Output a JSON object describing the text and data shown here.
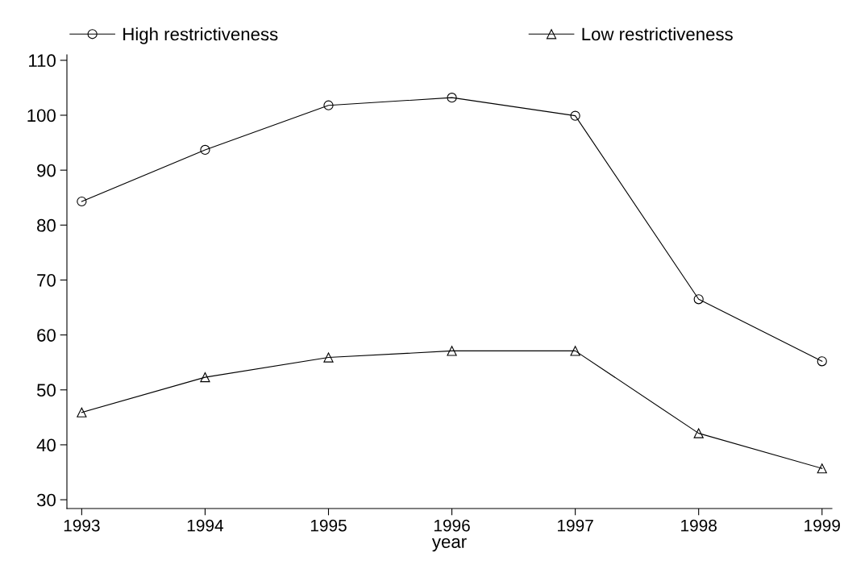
{
  "chart_data": {
    "type": "line",
    "xlabel": "year",
    "x": [
      1993,
      1994,
      1995,
      1996,
      1997,
      1998,
      1999
    ],
    "series": [
      {
        "name": "High restrictiveness",
        "color": "#000000",
        "marker": "circle",
        "values": [
          84.3,
          93.7,
          101.8,
          103.2,
          99.9,
          66.5,
          55.2
        ]
      },
      {
        "name": "Low restrictiveness",
        "color": "#000000",
        "marker": "triangle",
        "values": [
          45.9,
          52.3,
          55.9,
          57.1,
          57.1,
          42.1,
          35.7
        ]
      }
    ],
    "xlim": [
      1992.88,
      1999.08
    ],
    "xticks": [
      1993,
      1994,
      1995,
      1996,
      1997,
      1998,
      1999
    ],
    "ylim": [
      28.4,
      111
    ],
    "yticks": [
      30,
      40,
      50,
      60,
      70,
      80,
      90,
      100,
      110
    ],
    "grid": false,
    "legend": "top left",
    "line_style": "solid"
  }
}
